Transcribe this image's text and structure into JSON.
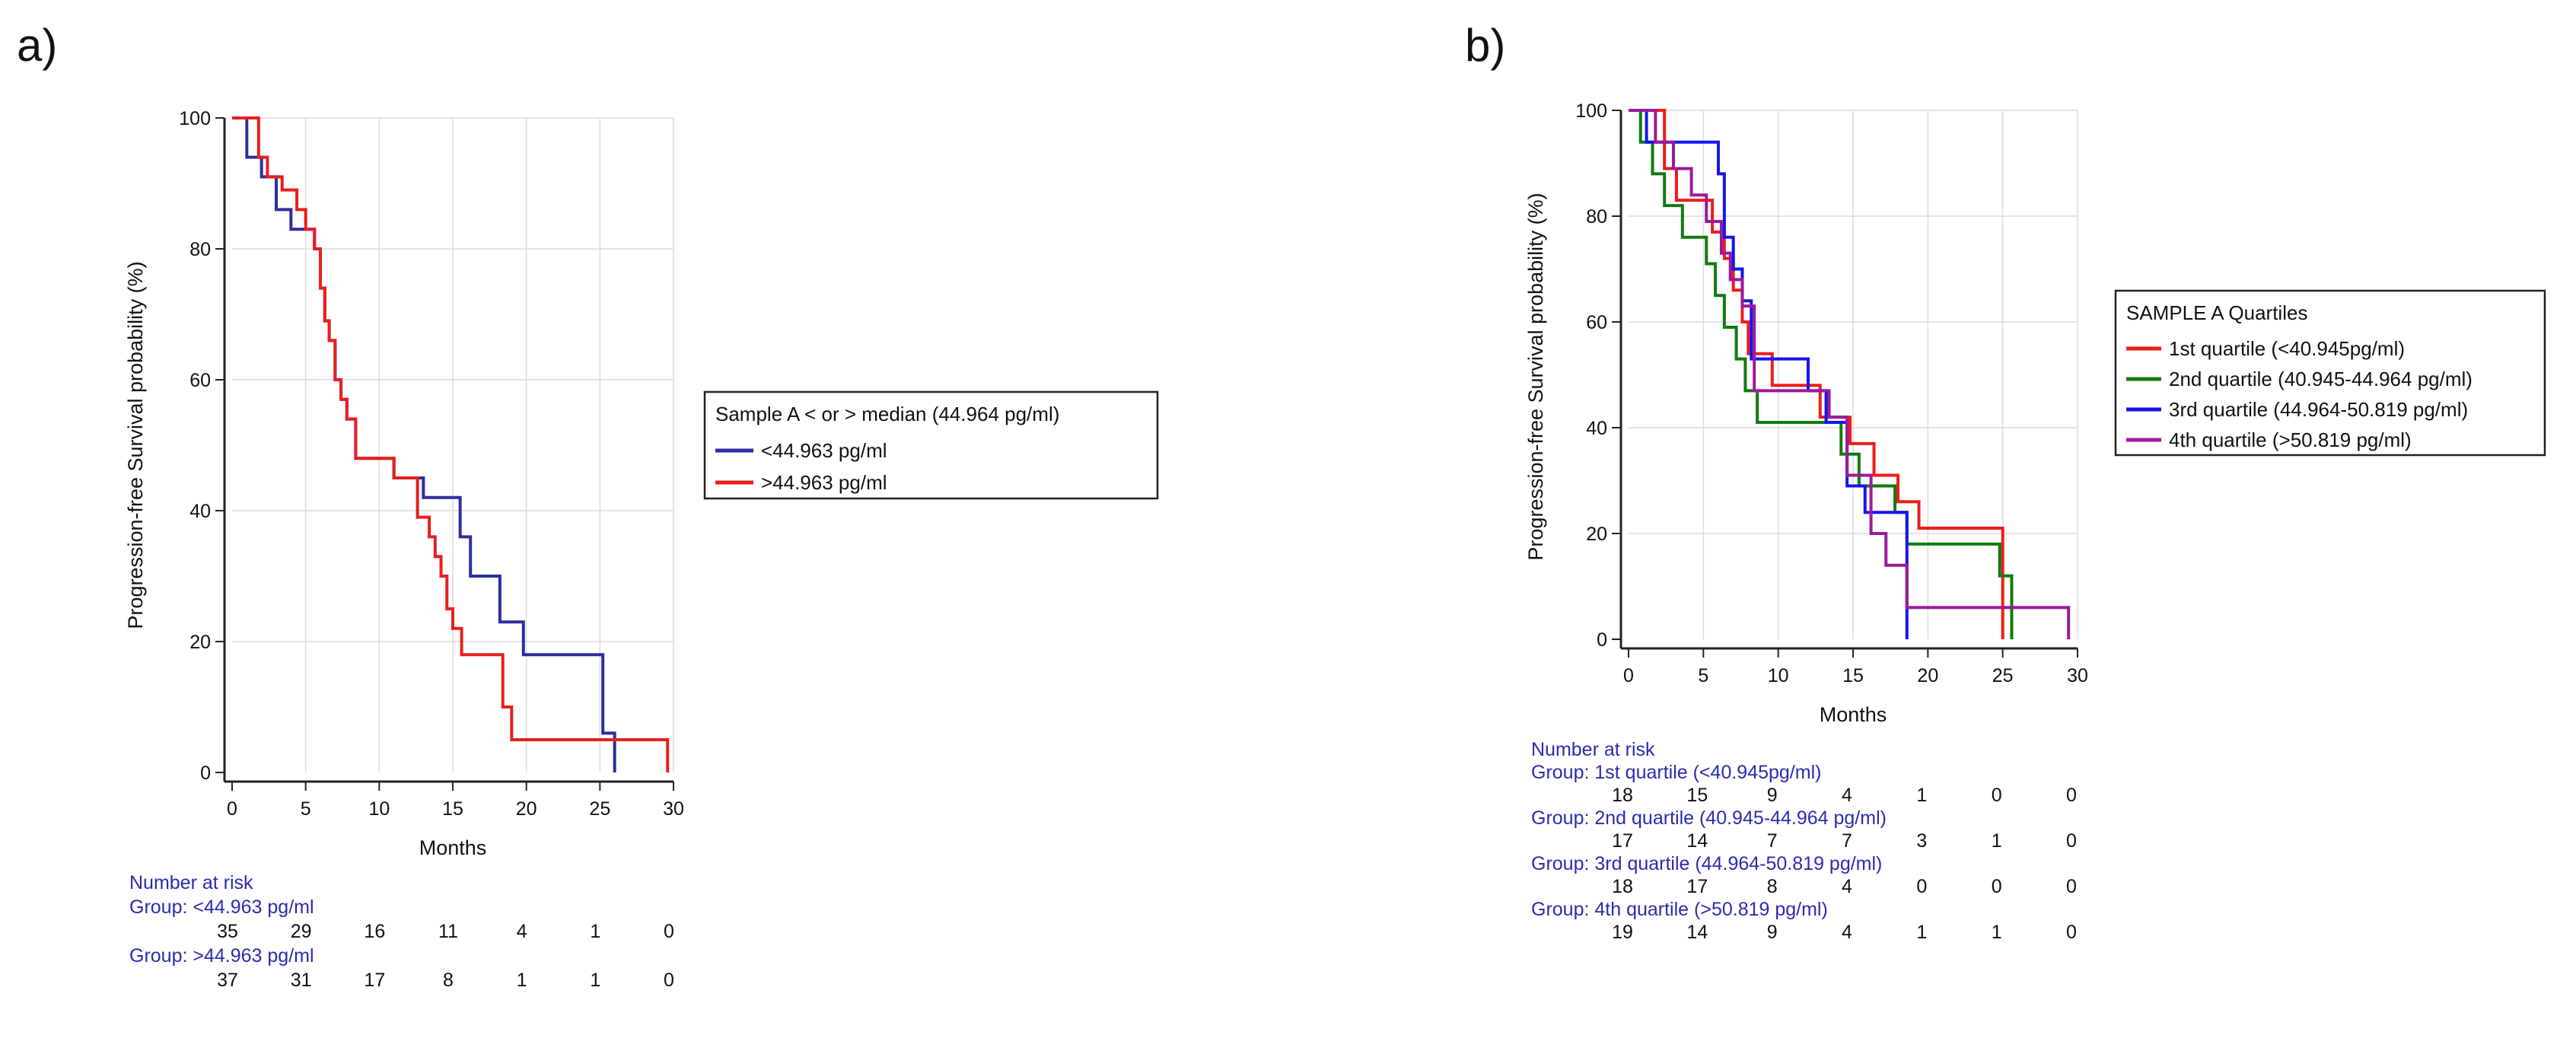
{
  "chart_data": [
    {
      "panel_label": "a)",
      "type": "line",
      "step": true,
      "xlabel": "Months",
      "ylabel": "Progression-free Survival probability (%)",
      "xlim": [
        0,
        30
      ],
      "ylim": [
        0,
        100
      ],
      "x_ticks": [
        "0",
        "5",
        "10",
        "15",
        "20",
        "25",
        "30"
      ],
      "y_ticks": [
        "0",
        "20",
        "40",
        "60",
        "80",
        "100"
      ],
      "grid": true,
      "legend": {
        "title": "Sample A < or > median (44.964 pg/ml)",
        "position": "right"
      },
      "series": [
        {
          "name": "<44.963 pg/ml",
          "color": "#2e2e9e",
          "x": [
            0,
            1,
            2,
            3,
            4,
            5,
            5.6,
            6.0,
            6.3,
            6.6,
            7.0,
            7.4,
            7.8,
            8.4,
            11,
            13,
            15,
            15.5,
            16.2,
            18.2,
            19.8,
            25.2,
            26
          ],
          "y": [
            100,
            94,
            91,
            86,
            83,
            83,
            80,
            74,
            69,
            66,
            60,
            57,
            54,
            48,
            45,
            42,
            42,
            36,
            30,
            23,
            18,
            6,
            0
          ]
        },
        {
          "name": ">44.963 pg/ml",
          "color": "#e81e1e",
          "x": [
            0,
            1.8,
            2.4,
            3.4,
            4.4,
            5.0,
            5.6,
            6.0,
            6.3,
            6.6,
            7.0,
            7.4,
            7.8,
            8.4,
            11,
            12.6,
            13.4,
            13.8,
            14.2,
            14.6,
            15.0,
            15.6,
            16.4,
            18.4,
            19.0,
            29.6
          ],
          "y": [
            100,
            94,
            91,
            89,
            86,
            83,
            80,
            74,
            69,
            66,
            60,
            57,
            54,
            48,
            45,
            39,
            36,
            33,
            30,
            25,
            22,
            18,
            18,
            10,
            5,
            0
          ]
        }
      ],
      "risk_table": {
        "title": "Number at risk",
        "groups": [
          {
            "label": "Group: <44.963 pg/ml",
            "values": [
              "35",
              "29",
              "16",
              "11",
              "4",
              "1",
              "0"
            ]
          },
          {
            "label": "Group: >44.963 pg/ml",
            "values": [
              "37",
              "31",
              "17",
              "8",
              "1",
              "1",
              "0"
            ]
          }
        ]
      }
    },
    {
      "panel_label": "b)",
      "type": "line",
      "step": true,
      "xlabel": "Months",
      "ylabel": "Progression-free Survival probability (%)",
      "xlim": [
        0,
        30
      ],
      "ylim": [
        0,
        100
      ],
      "x_ticks": [
        "0",
        "5",
        "10",
        "15",
        "20",
        "25",
        "30"
      ],
      "y_ticks": [
        "0",
        "20",
        "40",
        "60",
        "80",
        "100"
      ],
      "grid": true,
      "legend": {
        "title": "SAMPLE A Quartiles",
        "position": "right"
      },
      "series": [
        {
          "name": "1st quartile (<40.945pg/ml)",
          "color": "#ee1c1c",
          "x": [
            0,
            2.4,
            3.2,
            5.6,
            6.4,
            7.0,
            7.6,
            8.0,
            9.6,
            12.8,
            14.8,
            16.4,
            18.0,
            19.4,
            25.0
          ],
          "y": [
            100,
            89,
            83,
            77,
            72,
            66,
            60,
            54,
            48,
            42,
            37,
            31,
            26,
            21,
            0
          ]
        },
        {
          "name": "2nd quartile (40.945-44.964 pg/ml)",
          "color": "#127a12",
          "x": [
            0,
            0.8,
            1.6,
            2.4,
            3.6,
            5.2,
            5.8,
            6.4,
            7.2,
            7.8,
            8.6,
            14.2,
            15.4,
            17.8,
            18.6,
            24.8,
            25.6
          ],
          "y": [
            100,
            94,
            88,
            82,
            76,
            71,
            65,
            59,
            53,
            47,
            41,
            35,
            29,
            24,
            18,
            12,
            0
          ]
        },
        {
          "name": "3rd quartile (44.964-50.819 pg/ml)",
          "color": "#1515ee",
          "x": [
            0,
            1.2,
            6.0,
            6.4,
            7.0,
            7.6,
            8.2,
            12.0,
            13.2,
            14.6,
            15.8,
            18.6
          ],
          "y": [
            100,
            94,
            88,
            76,
            70,
            64,
            53,
            47,
            41,
            29,
            24,
            0
          ]
        },
        {
          "name": "4th quartile (>50.819 pg/ml)",
          "color": "#9a1a9a",
          "x": [
            0,
            1.8,
            3.0,
            4.2,
            5.2,
            6.2,
            6.8,
            7.6,
            8.4,
            13.4,
            14.6,
            16.2,
            17.2,
            18.6,
            29.4
          ],
          "y": [
            100,
            94,
            89,
            84,
            79,
            73,
            68,
            63,
            47,
            42,
            31,
            20,
            14,
            6,
            0
          ]
        }
      ],
      "risk_table": {
        "title": "Number at risk",
        "groups": [
          {
            "label": "Group: 1st quartile (<40.945pg/ml)",
            "values": [
              "18",
              "15",
              "9",
              "4",
              "1",
              "0",
              "0"
            ]
          },
          {
            "label": "Group: 2nd quartile (40.945-44.964 pg/ml)",
            "values": [
              "17",
              "14",
              "7",
              "7",
              "3",
              "1",
              "0"
            ]
          },
          {
            "label": "Group: 3rd quartile (44.964-50.819 pg/ml)",
            "values": [
              "18",
              "17",
              "8",
              "4",
              "0",
              "0",
              "0"
            ]
          },
          {
            "label": "Group: 4th quartile (>50.819 pg/ml)",
            "values": [
              "19",
              "14",
              "9",
              "4",
              "1",
              "1",
              "0"
            ]
          }
        ]
      }
    }
  ]
}
